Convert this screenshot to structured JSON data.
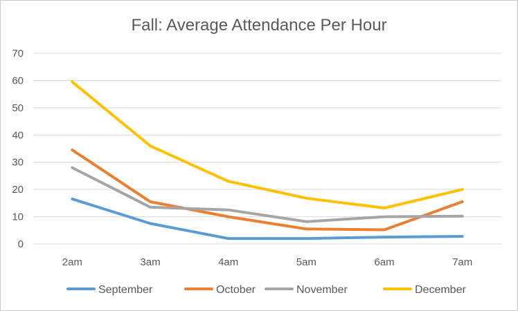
{
  "chart_data": {
    "type": "line",
    "title": "Fall: Average Attendance Per Hour",
    "xlabel": "",
    "ylabel": "",
    "categories": [
      "2am",
      "3am",
      "4am",
      "5am",
      "6am",
      "7am"
    ],
    "ylim": [
      0,
      70
    ],
    "yticks": [
      0,
      10,
      20,
      30,
      40,
      50,
      60,
      70
    ],
    "grid": true,
    "legend_position": "bottom",
    "series": [
      {
        "name": "September",
        "color": "#5b9bd5",
        "values": [
          16.5,
          7.5,
          2,
          2,
          2.5,
          2.8
        ]
      },
      {
        "name": "October",
        "color": "#ed7d31",
        "values": [
          34.5,
          15.5,
          10,
          5.5,
          5.2,
          15.5
        ]
      },
      {
        "name": "November",
        "color": "#a5a5a5",
        "values": [
          28,
          13.5,
          12.5,
          8.2,
          10,
          10.2
        ]
      },
      {
        "name": "December",
        "color": "#ffc000",
        "values": [
          59.5,
          36,
          23,
          16.8,
          13.2,
          20
        ]
      }
    ]
  }
}
